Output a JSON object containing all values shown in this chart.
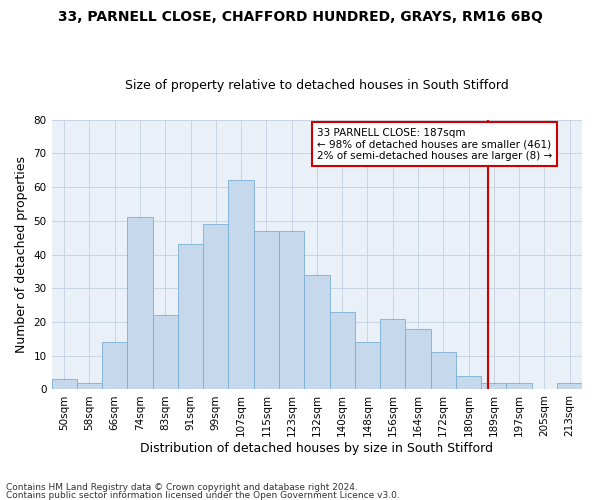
{
  "title1": "33, PARNELL CLOSE, CHAFFORD HUNDRED, GRAYS, RM16 6BQ",
  "title2": "Size of property relative to detached houses in South Stifford",
  "xlabel": "Distribution of detached houses by size in South Stifford",
  "ylabel": "Number of detached properties",
  "footnote1": "Contains HM Land Registry data © Crown copyright and database right 2024.",
  "footnote2": "Contains public sector information licensed under the Open Government Licence v3.0.",
  "annotation_title": "33 PARNELL CLOSE: 187sqm",
  "annotation_line1": "← 98% of detached houses are smaller (461)",
  "annotation_line2": "2% of semi-detached houses are larger (8) →",
  "bar_color": "#c5d8ec",
  "bar_edge_color": "#7bafd4",
  "vline_color": "#cc0000",
  "grid_color": "#c8d4e4",
  "bg_color": "#eaf0f8",
  "categories": [
    "50sqm",
    "58sqm",
    "66sqm",
    "74sqm",
    "83sqm",
    "91sqm",
    "99sqm",
    "107sqm",
    "115sqm",
    "123sqm",
    "132sqm",
    "140sqm",
    "148sqm",
    "156sqm",
    "164sqm",
    "172sqm",
    "180sqm",
    "189sqm",
    "197sqm",
    "205sqm",
    "213sqm"
  ],
  "values": [
    3,
    2,
    14,
    51,
    22,
    43,
    49,
    62,
    47,
    47,
    34,
    23,
    14,
    21,
    18,
    11,
    4,
    2,
    2,
    0,
    2
  ],
  "vline_index": 16.78,
  "ylim": [
    0,
    80
  ],
  "yticks": [
    0,
    10,
    20,
    30,
    40,
    50,
    60,
    70,
    80
  ],
  "title1_fontsize": 10,
  "title2_fontsize": 9,
  "ylabel_fontsize": 9,
  "xlabel_fontsize": 9,
  "tick_fontsize": 7.5,
  "annotation_fontsize": 7.5,
  "footnote_fontsize": 6.5
}
